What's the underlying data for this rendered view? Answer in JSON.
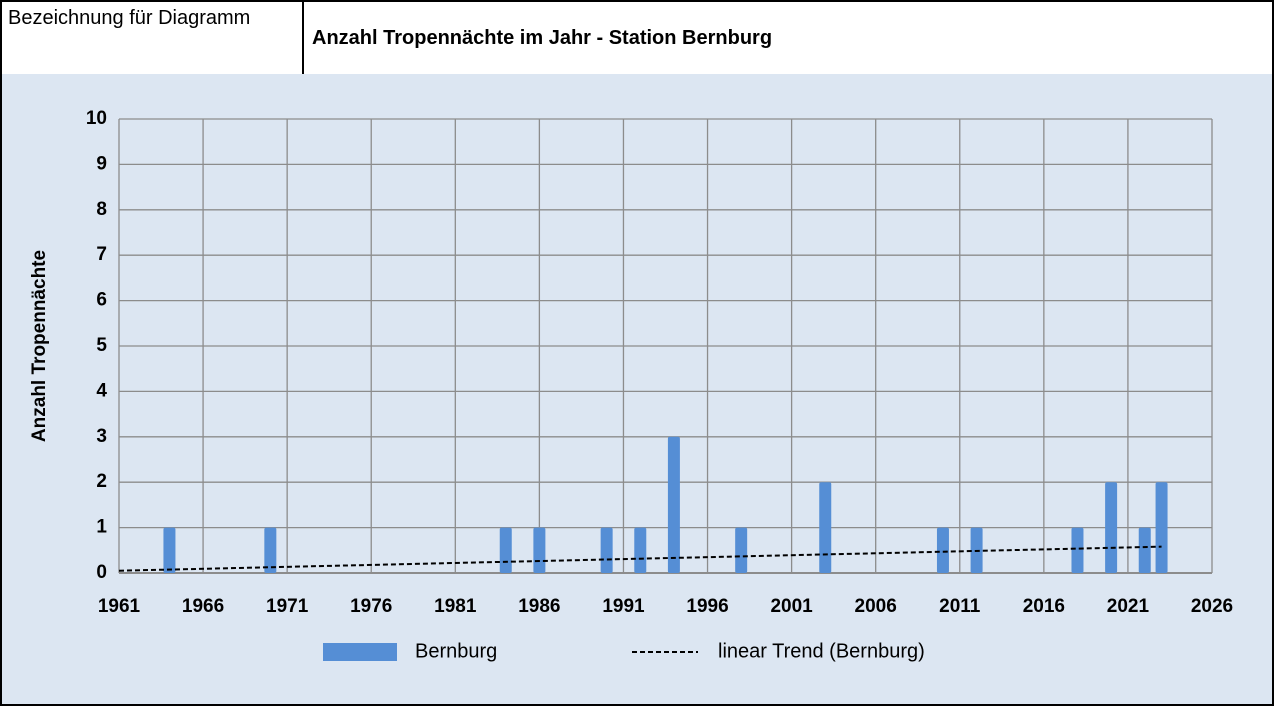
{
  "header": {
    "label": "Bezeichnung für Diagramm"
  },
  "chart_data": {
    "type": "bar",
    "title": "Anzahl Tropennächte im Jahr - Station Bernburg",
    "ylabel": "Anzahl Tropennächte",
    "x": [
      1964,
      1970,
      1984,
      1986,
      1990,
      1992,
      1994,
      1998,
      2003,
      2010,
      2012,
      2018,
      2020,
      2022,
      2023
    ],
    "series": [
      {
        "name": "Bernburg",
        "color": "#558ed5",
        "values": [
          1,
          1,
          1,
          1,
          1,
          1,
          3,
          1,
          2,
          1,
          1,
          1,
          2,
          1,
          2
        ]
      },
      {
        "name": "linear Trend (Bernburg)",
        "type": "line",
        "color": "#000000",
        "x": [
          1961,
          2023
        ],
        "values": [
          0.05,
          0.58
        ]
      }
    ],
    "xlim": [
      1961,
      2026
    ],
    "xticks": [
      1961,
      1966,
      1971,
      1976,
      1981,
      1986,
      1991,
      1996,
      2001,
      2006,
      2011,
      2016,
      2021,
      2026
    ],
    "ylim": [
      0,
      10
    ],
    "yticks": [
      0,
      1,
      2,
      3,
      4,
      5,
      6,
      7,
      8,
      9,
      10
    ],
    "grid": true,
    "legend": "bottom"
  }
}
